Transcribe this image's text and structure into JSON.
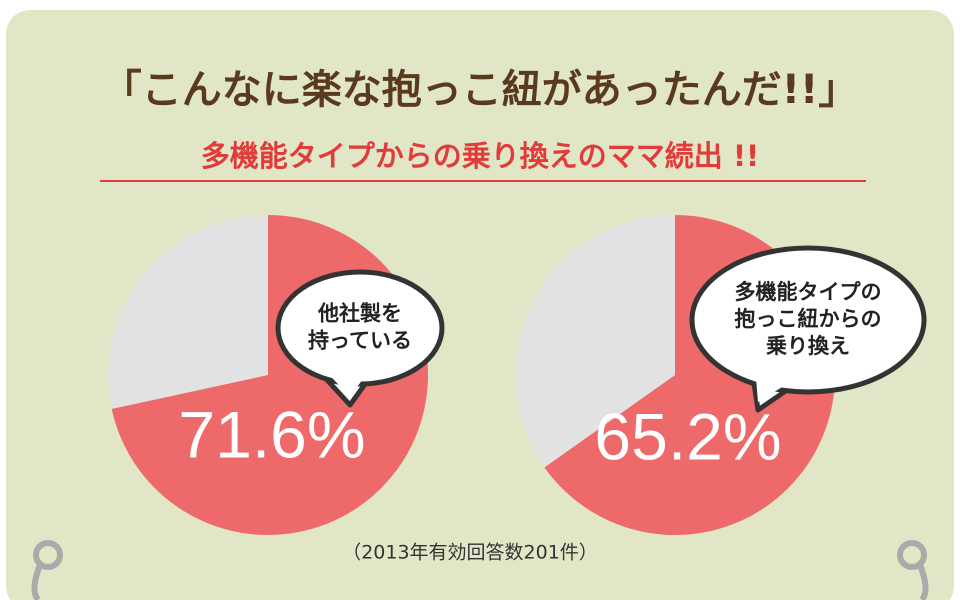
{
  "title": "「こんなに楽な抱っこ紐があったんだ!!」",
  "subtitle": "多機能タイプからの乗り換えのママ続出 !!",
  "note": "（2013年有効回答数201件）",
  "chart_data": [
    {
      "type": "pie",
      "values": [
        71.6,
        28.4
      ],
      "value_labels": [
        "71.6%",
        null
      ],
      "colors": [
        "#ee6a6a",
        "#e2e2e2"
      ],
      "annotation": [
        "他社製を",
        "持っている"
      ]
    },
    {
      "type": "pie",
      "values": [
        65.2,
        34.8
      ],
      "value_labels": [
        "65.2%",
        null
      ],
      "colors": [
        "#ee6a6a",
        "#e2e2e2"
      ],
      "annotation": [
        "多機能タイプの",
        "抱っこ紐からの",
        "乗り換え"
      ]
    }
  ]
}
